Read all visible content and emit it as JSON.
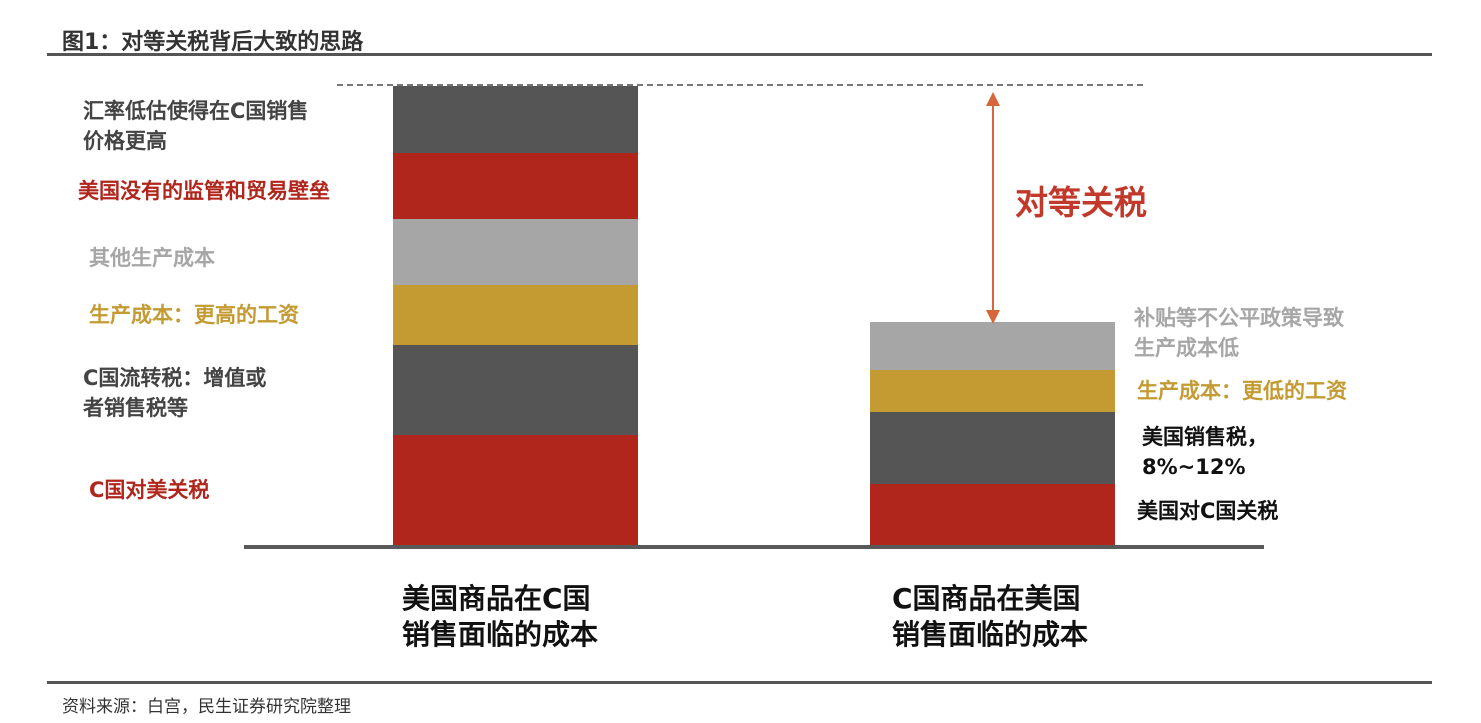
{
  "figure": {
    "title": "图1：对等关税背后大致的思路",
    "source": "资料来源：白宫，民生证券研究院整理"
  },
  "colors": {
    "dark_gray": "#555555",
    "red": "#b0261c",
    "light_gray": "#a6a6a6",
    "gold": "#c49a32",
    "accent_red": "#c0392b"
  },
  "left_bar": {
    "caption_line1": "美国商品在C国",
    "caption_line2": "销售面临的成本",
    "labels": {
      "fx_line1": "汇率低估使得在C国销售",
      "fx_line2": "价格更高",
      "regulation": "美国没有的监管和贸易壁垒",
      "other_cost": "其他生产成本",
      "wage": "生产成本：更高的工资",
      "vat_line1": "C国流转税：增值或",
      "vat_line2": "者销售税等",
      "tariff": "C国对美关税"
    }
  },
  "right_bar": {
    "caption_line1": "C国商品在美国",
    "caption_line2": "销售面临的成本",
    "labels": {
      "subsidy_line1": "补贴等不公平政策导致",
      "subsidy_line2": "生产成本低",
      "wage": "生产成本：更低的工资",
      "sales_tax_line1": "美国销售税，",
      "sales_tax_line2": "8%~12%",
      "tariff": "美国对C国关税"
    }
  },
  "gap_label": "对等关税"
}
